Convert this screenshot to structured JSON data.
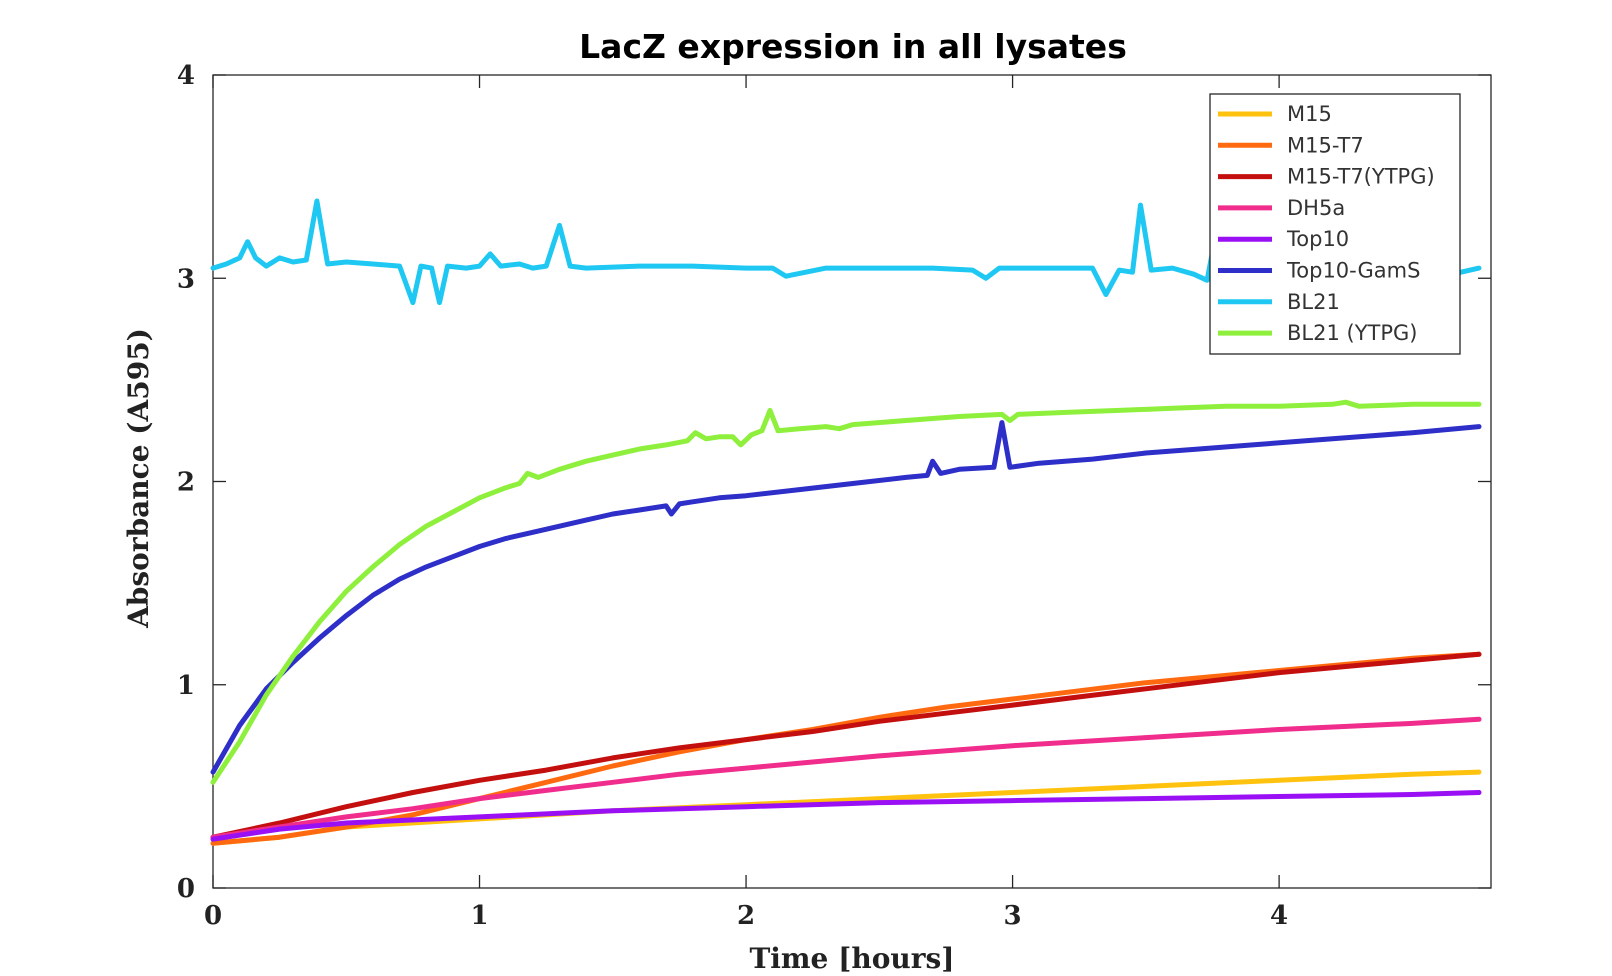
{
  "chart_data": {
    "type": "line",
    "title": "LacZ expression in all lysates",
    "xlabel": "Time [hours]",
    "ylabel": "Absorbance (A595)",
    "xlim": [
      0,
      4.75
    ],
    "ylim": [
      0,
      4
    ],
    "xticks": [
      "0",
      "1",
      "2",
      "3",
      "4"
    ],
    "yticks": [
      "0",
      "1",
      "2",
      "3",
      "4"
    ],
    "grid": false,
    "legend_position": "top-right",
    "series": [
      {
        "name": "M15",
        "color": "#FFC20E",
        "x": [
          0,
          0.25,
          0.5,
          1,
          1.5,
          2,
          2.5,
          3,
          3.5,
          4,
          4.5,
          4.75
        ],
        "y": [
          0.22,
          0.25,
          0.3,
          0.34,
          0.38,
          0.41,
          0.44,
          0.47,
          0.5,
          0.53,
          0.56,
          0.57
        ]
      },
      {
        "name": "M15-T7",
        "color": "#FF6A10",
        "x": [
          0,
          0.25,
          0.5,
          0.75,
          1,
          1.25,
          1.5,
          1.75,
          2,
          2.25,
          2.5,
          2.75,
          3,
          3.25,
          3.5,
          3.75,
          4,
          4.25,
          4.5,
          4.75
        ],
        "y": [
          0.22,
          0.25,
          0.3,
          0.36,
          0.44,
          0.52,
          0.6,
          0.67,
          0.73,
          0.78,
          0.84,
          0.89,
          0.93,
          0.97,
          1.01,
          1.04,
          1.07,
          1.1,
          1.13,
          1.15
        ]
      },
      {
        "name": "M15-T7(YTPG)",
        "color": "#C40F0F",
        "x": [
          0,
          0.25,
          0.5,
          0.75,
          1,
          1.25,
          1.5,
          1.75,
          2,
          2.25,
          2.5,
          2.75,
          3,
          3.25,
          3.5,
          3.75,
          4,
          4.25,
          4.5,
          4.75
        ],
        "y": [
          0.25,
          0.32,
          0.4,
          0.47,
          0.53,
          0.58,
          0.64,
          0.69,
          0.73,
          0.77,
          0.82,
          0.86,
          0.9,
          0.94,
          0.98,
          1.02,
          1.06,
          1.09,
          1.12,
          1.15
        ]
      },
      {
        "name": "DH5a",
        "color": "#F02C8C",
        "x": [
          0,
          0.25,
          0.5,
          0.75,
          1,
          1.25,
          1.5,
          1.75,
          2,
          2.5,
          3,
          3.5,
          4,
          4.5,
          4.75
        ],
        "y": [
          0.25,
          0.3,
          0.35,
          0.39,
          0.44,
          0.48,
          0.52,
          0.56,
          0.59,
          0.65,
          0.7,
          0.74,
          0.78,
          0.81,
          0.83
        ]
      },
      {
        "name": "Top10",
        "color": "#9A10F5",
        "x": [
          0,
          0.25,
          0.5,
          1,
          1.5,
          2,
          2.5,
          3,
          3.5,
          4,
          4.5,
          4.75
        ],
        "y": [
          0.24,
          0.29,
          0.32,
          0.35,
          0.38,
          0.4,
          0.42,
          0.43,
          0.44,
          0.45,
          0.46,
          0.47
        ]
      },
      {
        "name": "Top10-GamS",
        "color": "#2E2EC9",
        "x": [
          0,
          0.1,
          0.2,
          0.3,
          0.4,
          0.5,
          0.6,
          0.7,
          0.8,
          0.9,
          1,
          1.1,
          1.2,
          1.3,
          1.4,
          1.5,
          1.6,
          1.7,
          1.72,
          1.75,
          1.8,
          1.9,
          2,
          2.2,
          2.4,
          2.6,
          2.68,
          2.7,
          2.73,
          2.8,
          2.93,
          2.96,
          2.99,
          3.1,
          3.3,
          3.5,
          3.7,
          3.9,
          4.1,
          4.3,
          4.5,
          4.75
        ],
        "y": [
          0.57,
          0.8,
          0.98,
          1.11,
          1.23,
          1.34,
          1.44,
          1.52,
          1.58,
          1.63,
          1.68,
          1.72,
          1.75,
          1.78,
          1.81,
          1.84,
          1.86,
          1.88,
          1.84,
          1.89,
          1.9,
          1.92,
          1.93,
          1.96,
          1.99,
          2.02,
          2.03,
          2.1,
          2.04,
          2.06,
          2.07,
          2.29,
          2.07,
          2.09,
          2.11,
          2.14,
          2.16,
          2.18,
          2.2,
          2.22,
          2.24,
          2.27
        ]
      },
      {
        "name": "BL21",
        "color": "#1EC8F2",
        "x": [
          0,
          0.05,
          0.1,
          0.13,
          0.16,
          0.2,
          0.25,
          0.3,
          0.35,
          0.39,
          0.43,
          0.5,
          0.6,
          0.7,
          0.75,
          0.78,
          0.82,
          0.85,
          0.88,
          0.95,
          1,
          1.04,
          1.08,
          1.15,
          1.2,
          1.25,
          1.3,
          1.34,
          1.4,
          1.6,
          1.8,
          2,
          2.1,
          2.15,
          2.3,
          2.5,
          2.7,
          2.85,
          2.9,
          2.95,
          3.1,
          3.3,
          3.35,
          3.4,
          3.45,
          3.48,
          3.52,
          3.6,
          3.68,
          3.73,
          3.78,
          3.82,
          4.0,
          4.2,
          4.4,
          4.6,
          4.65,
          4.75
        ],
        "y": [
          3.05,
          3.07,
          3.1,
          3.18,
          3.1,
          3.06,
          3.1,
          3.08,
          3.09,
          3.38,
          3.07,
          3.08,
          3.07,
          3.06,
          2.88,
          3.06,
          3.05,
          2.88,
          3.06,
          3.05,
          3.06,
          3.12,
          3.06,
          3.07,
          3.05,
          3.06,
          3.26,
          3.06,
          3.05,
          3.06,
          3.06,
          3.05,
          3.05,
          3.01,
          3.05,
          3.05,
          3.05,
          3.04,
          3.0,
          3.05,
          3.05,
          3.05,
          2.92,
          3.04,
          3.03,
          3.36,
          3.04,
          3.05,
          3.02,
          2.99,
          3.34,
          3.06,
          3.05,
          3.05,
          3.05,
          3.05,
          3.02,
          3.05
        ]
      },
      {
        "name": "BL21 (YTPG)",
        "color": "#8EF03C",
        "x": [
          0,
          0.1,
          0.2,
          0.3,
          0.4,
          0.5,
          0.6,
          0.7,
          0.8,
          0.9,
          1,
          1.1,
          1.15,
          1.18,
          1.22,
          1.3,
          1.4,
          1.5,
          1.6,
          1.7,
          1.78,
          1.81,
          1.85,
          1.9,
          1.95,
          1.98,
          2.02,
          2.06,
          2.09,
          2.12,
          2.2,
          2.3,
          2.35,
          2.4,
          2.6,
          2.8,
          2.96,
          2.99,
          3.02,
          3.2,
          3.4,
          3.6,
          3.8,
          4.0,
          4.2,
          4.25,
          4.3,
          4.5,
          4.75
        ],
        "y": [
          0.52,
          0.72,
          0.95,
          1.14,
          1.31,
          1.46,
          1.58,
          1.69,
          1.78,
          1.85,
          1.92,
          1.97,
          1.99,
          2.04,
          2.02,
          2.06,
          2.1,
          2.13,
          2.16,
          2.18,
          2.2,
          2.24,
          2.21,
          2.22,
          2.22,
          2.18,
          2.23,
          2.25,
          2.35,
          2.25,
          2.26,
          2.27,
          2.26,
          2.28,
          2.3,
          2.32,
          2.33,
          2.3,
          2.33,
          2.34,
          2.35,
          2.36,
          2.37,
          2.37,
          2.38,
          2.39,
          2.37,
          2.38,
          2.38
        ]
      }
    ]
  }
}
